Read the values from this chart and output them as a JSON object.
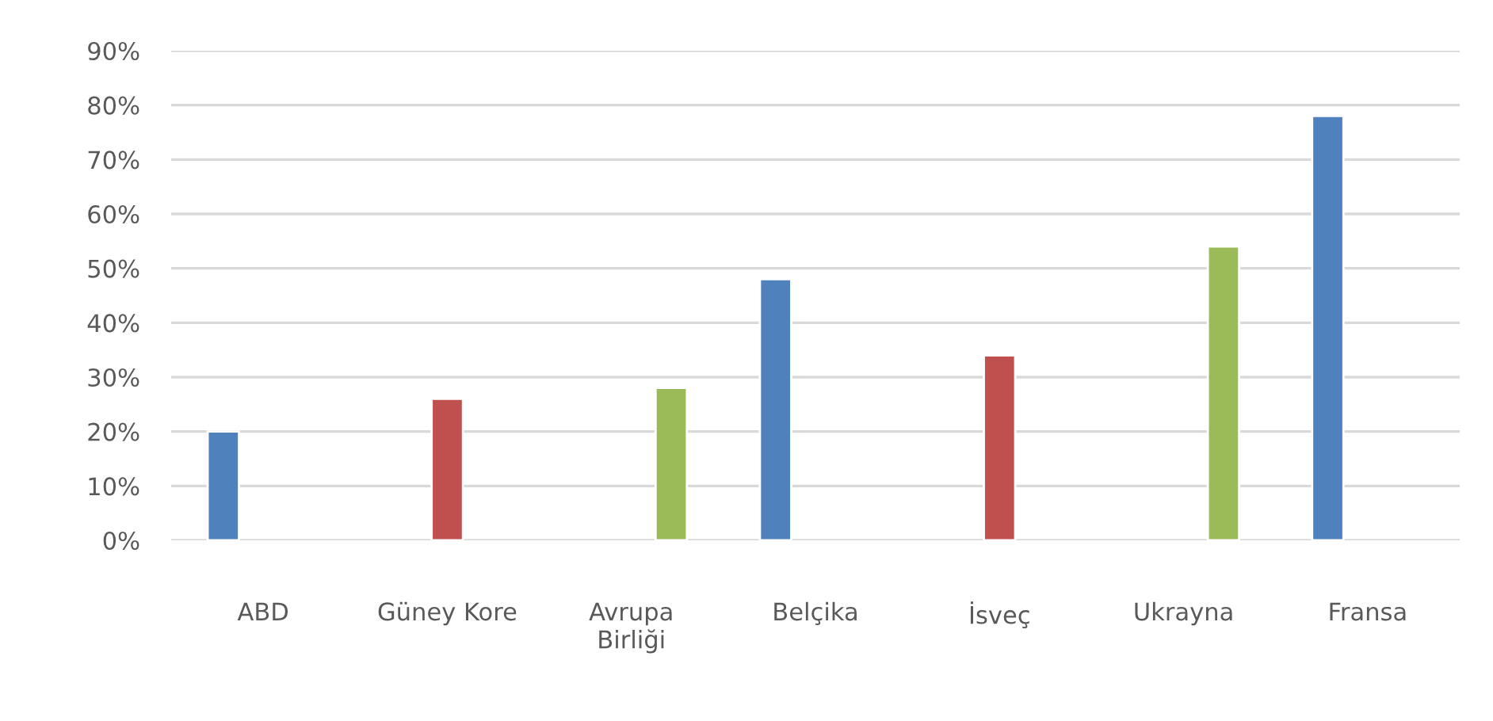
{
  "chart_data": {
    "type": "bar",
    "categories": [
      "ABD",
      "Güney Kore",
      "Avrupa\nBirliği",
      "Belçika",
      "İsveç",
      "Ukrayna",
      "Fransa"
    ],
    "series": [
      {
        "color": "#4f81bd",
        "values": [
          20,
          null,
          null,
          48,
          null,
          null,
          78
        ]
      },
      {
        "color": "#c0504d",
        "values": [
          null,
          26,
          null,
          null,
          34,
          null,
          null
        ]
      },
      {
        "color": "#9bbb59",
        "values": [
          null,
          null,
          28,
          null,
          null,
          54,
          null
        ]
      }
    ],
    "ylim": [
      0,
      90
    ],
    "yticks": [
      {
        "value": 0,
        "label": "0%"
      },
      {
        "value": 10,
        "label": "10%"
      },
      {
        "value": 20,
        "label": "20%"
      },
      {
        "value": 30,
        "label": "30%"
      },
      {
        "value": 40,
        "label": "40%"
      },
      {
        "value": 50,
        "label": "50%"
      },
      {
        "value": 60,
        "label": "60%"
      },
      {
        "value": 70,
        "label": "70%"
      },
      {
        "value": 80,
        "label": "80%"
      },
      {
        "value": 90,
        "label": "90%"
      }
    ],
    "grid": "y"
  }
}
